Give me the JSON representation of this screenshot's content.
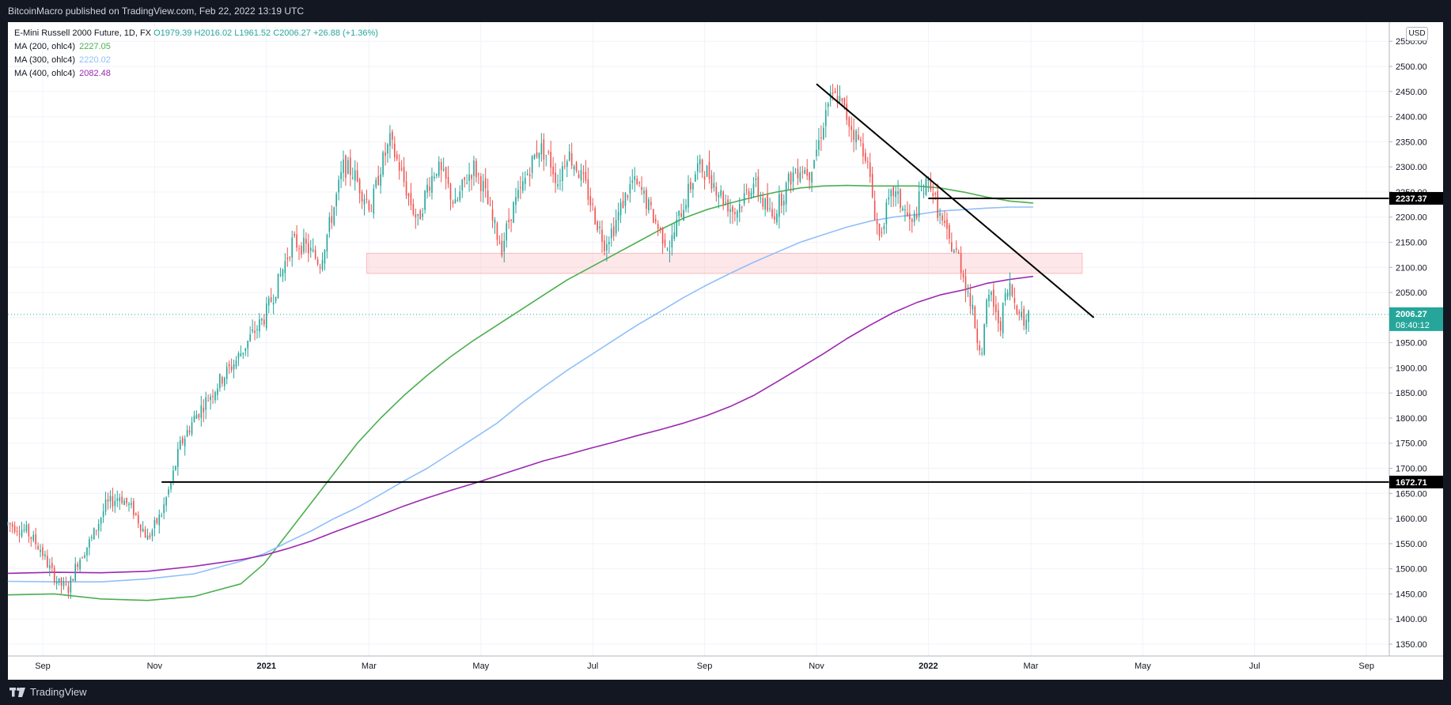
{
  "header": {
    "published_text": "BitcoinMacro published on TradingView.com, Feb 22, 2022 13:19 UTC"
  },
  "legend": {
    "symbol_line": "E-Mini Russell 2000 Future, 1D, FX",
    "ohlc": {
      "open": "O1979.39",
      "high": "H2016.02",
      "low": "L1961.52",
      "close": "C2006.27",
      "change": "+26.88 (+1.36%)"
    },
    "indicators": [
      {
        "label": "MA (200, ohlc4)",
        "value": "2227.05",
        "color": "#4caf50"
      },
      {
        "label": "MA (300, ohlc4)",
        "value": "2220.02",
        "color": "#90bff9"
      },
      {
        "label": "MA (400, ohlc4)",
        "value": "2082.48",
        "color": "#9c27b0"
      }
    ]
  },
  "currency_label": "USD",
  "price_badges": {
    "upper_level": "2237.37",
    "last_price": "2006.27",
    "countdown": "08:40:12",
    "lower_level": "1672.71"
  },
  "footer": {
    "brand": "TradingView"
  },
  "chart_data": {
    "type": "line",
    "title": "E-Mini Russell 2000 Future, 1D, FX",
    "xlabel": "",
    "ylabel": "USD",
    "ylim": [
      1330,
      2560
    ],
    "xlim": [
      0,
      595
    ],
    "grid": true,
    "time_axis_note": "x = trading day index from approx. Aug 1, 2020",
    "y_ticks": [
      "2550.00",
      "2500.00",
      "2450.00",
      "2400.00",
      "2350.00",
      "2300.00",
      "2250.00",
      "2200.00",
      "2150.00",
      "2100.00",
      "2050.00",
      "2000.00",
      "1950.00",
      "1900.00",
      "1850.00",
      "1800.00",
      "1750.00",
      "1700.00",
      "1650.00",
      "1600.00",
      "1550.00",
      "1500.00",
      "1450.00",
      "1400.00",
      "1350.00"
    ],
    "x_ticks": [
      {
        "label": "Sep",
        "x": 15
      },
      {
        "label": "Nov",
        "x": 63
      },
      {
        "label": "2021",
        "x": 111,
        "bold": true
      },
      {
        "label": "Mar",
        "x": 155
      },
      {
        "label": "May",
        "x": 203
      },
      {
        "label": "Jul",
        "x": 251
      },
      {
        "label": "Sep",
        "x": 299
      },
      {
        "label": "Nov",
        "x": 347
      },
      {
        "label": "2022",
        "x": 395,
        "bold": true
      },
      {
        "label": "Mar",
        "x": 439
      },
      {
        "label": "May",
        "x": 487
      },
      {
        "label": "Jul",
        "x": 535
      },
      {
        "label": "Sep",
        "x": 583
      }
    ],
    "price_path": [
      [
        0,
        1590
      ],
      [
        8,
        1575
      ],
      [
        14,
        1540
      ],
      [
        18,
        1500
      ],
      [
        22,
        1470
      ],
      [
        26,
        1460
      ],
      [
        30,
        1515
      ],
      [
        36,
        1560
      ],
      [
        42,
        1625
      ],
      [
        48,
        1645
      ],
      [
        54,
        1615
      ],
      [
        60,
        1560
      ],
      [
        66,
        1610
      ],
      [
        70,
        1670
      ],
      [
        74,
        1745
      ],
      [
        80,
        1800
      ],
      [
        86,
        1840
      ],
      [
        92,
        1880
      ],
      [
        98,
        1915
      ],
      [
        104,
        1960
      ],
      [
        110,
        2000
      ],
      [
        116,
        2070
      ],
      [
        122,
        2150
      ],
      [
        128,
        2140
      ],
      [
        134,
        2110
      ],
      [
        140,
        2220
      ],
      [
        144,
        2300
      ],
      [
        148,
        2290
      ],
      [
        152,
        2250
      ],
      [
        156,
        2220
      ],
      [
        160,
        2300
      ],
      [
        164,
        2350
      ],
      [
        168,
        2300
      ],
      [
        172,
        2240
      ],
      [
        176,
        2190
      ],
      [
        180,
        2260
      ],
      [
        184,
        2300
      ],
      [
        188,
        2270
      ],
      [
        192,
        2220
      ],
      [
        196,
        2270
      ],
      [
        200,
        2300
      ],
      [
        204,
        2260
      ],
      [
        208,
        2190
      ],
      [
        212,
        2140
      ],
      [
        216,
        2210
      ],
      [
        220,
        2250
      ],
      [
        224,
        2300
      ],
      [
        228,
        2340
      ],
      [
        232,
        2320
      ],
      [
        236,
        2270
      ],
      [
        240,
        2330
      ],
      [
        244,
        2300
      ],
      [
        248,
        2260
      ],
      [
        252,
        2200
      ],
      [
        256,
        2150
      ],
      [
        260,
        2180
      ],
      [
        264,
        2230
      ],
      [
        268,
        2270
      ],
      [
        272,
        2250
      ],
      [
        276,
        2210
      ],
      [
        280,
        2170
      ],
      [
        284,
        2140
      ],
      [
        288,
        2200
      ],
      [
        292,
        2250
      ],
      [
        296,
        2300
      ],
      [
        300,
        2290
      ],
      [
        304,
        2260
      ],
      [
        308,
        2230
      ],
      [
        312,
        2210
      ],
      [
        316,
        2240
      ],
      [
        320,
        2270
      ],
      [
        324,
        2230
      ],
      [
        328,
        2200
      ],
      [
        332,
        2240
      ],
      [
        336,
        2280
      ],
      [
        340,
        2300
      ],
      [
        344,
        2290
      ],
      [
        348,
        2350
      ],
      [
        352,
        2430
      ],
      [
        356,
        2440
      ],
      [
        360,
        2400
      ],
      [
        364,
        2360
      ],
      [
        368,
        2330
      ],
      [
        372,
        2210
      ],
      [
        374,
        2160
      ],
      [
        376,
        2200
      ],
      [
        380,
        2250
      ],
      [
        384,
        2220
      ],
      [
        388,
        2180
      ],
      [
        392,
        2250
      ],
      [
        396,
        2270
      ],
      [
        398,
        2230
      ],
      [
        400,
        2200
      ],
      [
        404,
        2150
      ],
      [
        408,
        2120
      ],
      [
        412,
        2050
      ],
      [
        414,
        2010
      ],
      [
        416,
        1960
      ],
      [
        418,
        1940
      ],
      [
        420,
        2020
      ],
      [
        422,
        2050
      ],
      [
        424,
        2000
      ],
      [
        426,
        1990
      ],
      [
        428,
        2040
      ],
      [
        430,
        2060
      ],
      [
        432,
        2030
      ],
      [
        434,
        2020
      ],
      [
        436,
        1990
      ],
      [
        438,
        2006
      ]
    ],
    "series": [
      {
        "name": "MA (200, ohlc4)",
        "color": "#4caf50",
        "values": [
          [
            0,
            1448
          ],
          [
            20,
            1450
          ],
          [
            40,
            1440
          ],
          [
            60,
            1437
          ],
          [
            80,
            1445
          ],
          [
            100,
            1470
          ],
          [
            110,
            1510
          ],
          [
            120,
            1570
          ],
          [
            130,
            1630
          ],
          [
            140,
            1690
          ],
          [
            150,
            1750
          ],
          [
            160,
            1800
          ],
          [
            170,
            1845
          ],
          [
            180,
            1885
          ],
          [
            190,
            1922
          ],
          [
            200,
            1955
          ],
          [
            210,
            1985
          ],
          [
            220,
            2015
          ],
          [
            230,
            2045
          ],
          [
            240,
            2075
          ],
          [
            250,
            2100
          ],
          [
            260,
            2125
          ],
          [
            270,
            2150
          ],
          [
            280,
            2175
          ],
          [
            290,
            2198
          ],
          [
            300,
            2215
          ],
          [
            310,
            2228
          ],
          [
            320,
            2240
          ],
          [
            330,
            2250
          ],
          [
            340,
            2258
          ],
          [
            350,
            2262
          ],
          [
            360,
            2263
          ],
          [
            370,
            2262
          ],
          [
            380,
            2262
          ],
          [
            390,
            2262
          ],
          [
            400,
            2258
          ],
          [
            410,
            2250
          ],
          [
            420,
            2240
          ],
          [
            430,
            2232
          ],
          [
            440,
            2228
          ]
        ]
      },
      {
        "name": "MA (300, ohlc4)",
        "color": "#90bff9",
        "values": [
          [
            0,
            1475
          ],
          [
            20,
            1474
          ],
          [
            40,
            1474
          ],
          [
            60,
            1480
          ],
          [
            80,
            1490
          ],
          [
            100,
            1515
          ],
          [
            110,
            1530
          ],
          [
            120,
            1553
          ],
          [
            130,
            1575
          ],
          [
            140,
            1600
          ],
          [
            150,
            1622
          ],
          [
            160,
            1648
          ],
          [
            170,
            1675
          ],
          [
            180,
            1700
          ],
          [
            190,
            1730
          ],
          [
            200,
            1760
          ],
          [
            210,
            1790
          ],
          [
            220,
            1828
          ],
          [
            230,
            1862
          ],
          [
            240,
            1895
          ],
          [
            250,
            1925
          ],
          [
            260,
            1955
          ],
          [
            270,
            1985
          ],
          [
            280,
            2012
          ],
          [
            290,
            2040
          ],
          [
            300,
            2065
          ],
          [
            310,
            2088
          ],
          [
            320,
            2110
          ],
          [
            330,
            2130
          ],
          [
            340,
            2150
          ],
          [
            350,
            2165
          ],
          [
            360,
            2180
          ],
          [
            370,
            2192
          ],
          [
            380,
            2200
          ],
          [
            390,
            2205
          ],
          [
            400,
            2212
          ],
          [
            410,
            2215
          ],
          [
            420,
            2218
          ],
          [
            430,
            2220
          ],
          [
            440,
            2220
          ]
        ]
      },
      {
        "name": "MA (400, ohlc4)",
        "color": "#9c27b0",
        "values": [
          [
            0,
            1491
          ],
          [
            20,
            1493
          ],
          [
            40,
            1492
          ],
          [
            60,
            1495
          ],
          [
            80,
            1505
          ],
          [
            100,
            1518
          ],
          [
            110,
            1527
          ],
          [
            120,
            1540
          ],
          [
            130,
            1555
          ],
          [
            140,
            1573
          ],
          [
            150,
            1590
          ],
          [
            160,
            1607
          ],
          [
            170,
            1625
          ],
          [
            180,
            1641
          ],
          [
            190,
            1656
          ],
          [
            200,
            1670
          ],
          [
            210,
            1685
          ],
          [
            220,
            1700
          ],
          [
            230,
            1715
          ],
          [
            240,
            1727
          ],
          [
            250,
            1740
          ],
          [
            260,
            1752
          ],
          [
            270,
            1765
          ],
          [
            280,
            1777
          ],
          [
            290,
            1790
          ],
          [
            300,
            1805
          ],
          [
            310,
            1823
          ],
          [
            320,
            1845
          ],
          [
            330,
            1872
          ],
          [
            340,
            1900
          ],
          [
            350,
            1928
          ],
          [
            360,
            1958
          ],
          [
            370,
            1985
          ],
          [
            380,
            2010
          ],
          [
            390,
            2030
          ],
          [
            400,
            2045
          ],
          [
            410,
            2055
          ],
          [
            420,
            2068
          ],
          [
            430,
            2076
          ],
          [
            440,
            2082
          ]
        ]
      }
    ],
    "annotations": [
      {
        "type": "trendline",
        "from": [
          347,
          2465
        ],
        "to": [
          466,
          2000
        ],
        "color": "#000000"
      },
      {
        "type": "hline",
        "price": 2237.37,
        "from_x": 395,
        "color": "#000000"
      },
      {
        "type": "hline",
        "price": 1672.71,
        "from_x": 66,
        "color": "#000000"
      },
      {
        "type": "zone",
        "from_x": 154,
        "to_x": 461,
        "y_low": 2088,
        "y_high": 2128,
        "color": "#f8bbc0"
      },
      {
        "type": "last_price_line",
        "price": 2006.27,
        "color": "#26a69a"
      }
    ]
  }
}
